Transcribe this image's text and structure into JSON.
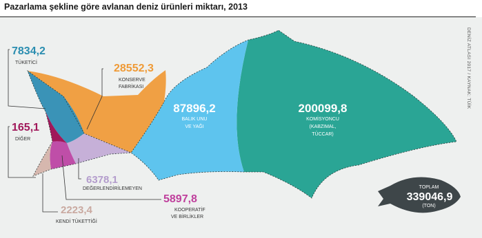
{
  "title": "Pazarlama şekline göre avlanan deniz ürünleri miktarı, 2013",
  "source": "DENİZ ATLASI 2017 / KAYNAK: TÜİK",
  "chart_data": {
    "type": "area",
    "title": "Pazarlama şekline göre avlanan deniz ürünleri miktarı, 2013",
    "unit": "TON",
    "categories": [
      "KOMİSYONCU (KABZIMAL, TÜCCAR)",
      "BALIK UNU VE YAĞI",
      "KONSERVE FABRİKASI",
      "TÜKETİCİ",
      "DEĞERLENDİRİLEMEYEN",
      "KOOPERATİF VE BİRLİKLER",
      "KENDİ TÜKETTİĞİ",
      "DİĞER"
    ],
    "values": [
      200099.8,
      87896.2,
      28552.3,
      7834.2,
      6378.1,
      5897.8,
      2223.4,
      165.1
    ],
    "value_labels": [
      "200099,8",
      "87896,2",
      "28552,3",
      "7834,2",
      "6378,1",
      "5897,8",
      "2223,4",
      "165,1"
    ],
    "colors": [
      "#2aa595",
      "#5ec4ee",
      "#f0a044",
      "#3a93b7",
      "#c6b0d8",
      "#bf4ea8",
      "#d6b7ae",
      "#a0185a"
    ],
    "total_label": "TOPLAM",
    "total_value": "339046,9",
    "total_unit": "(TON)"
  }
}
